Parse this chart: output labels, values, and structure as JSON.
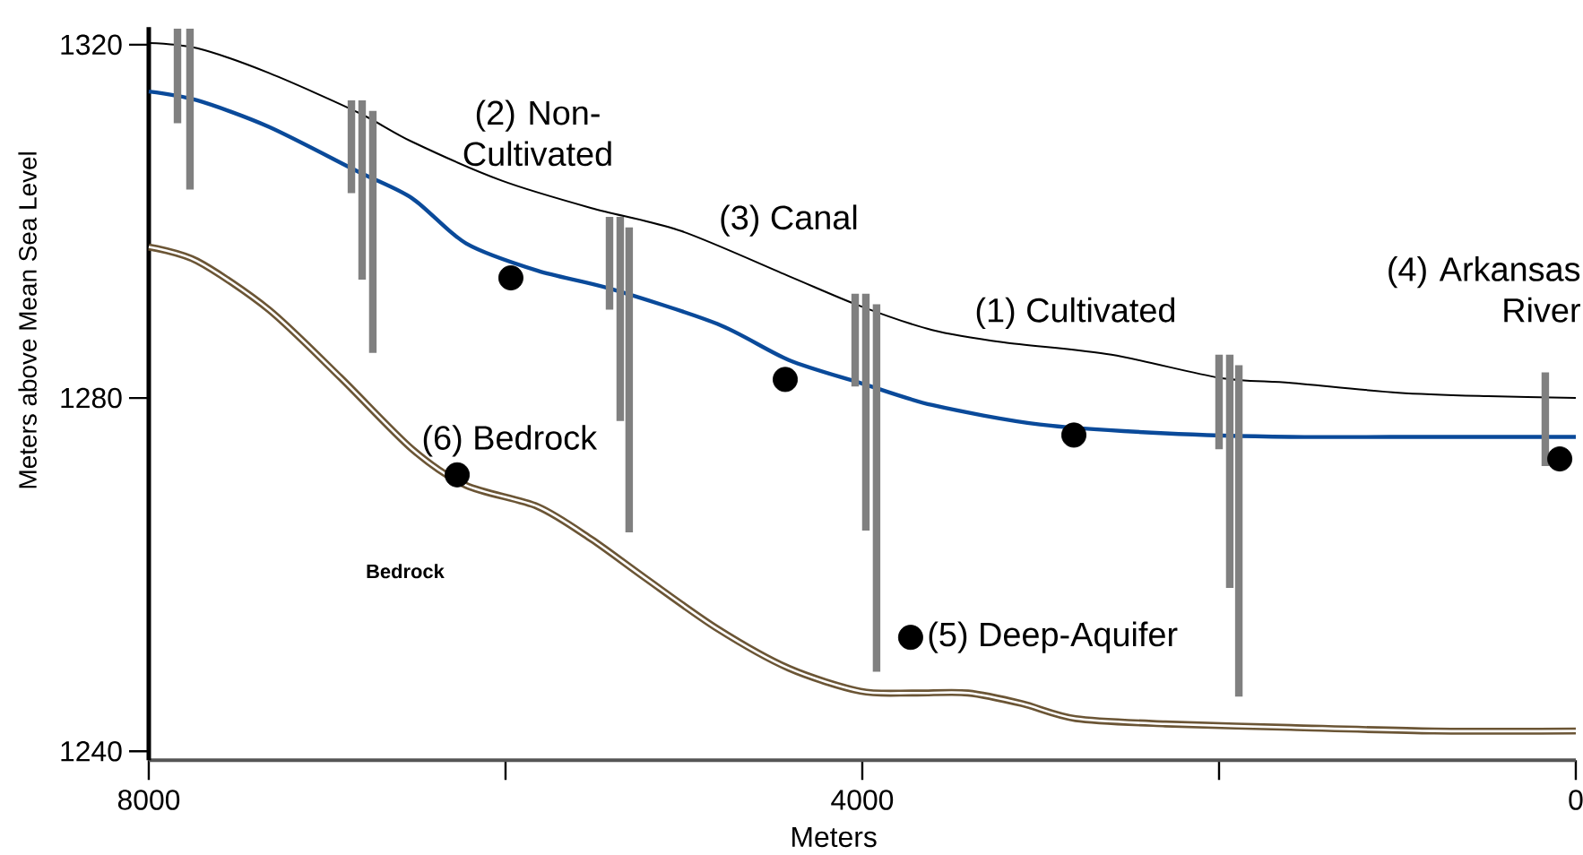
{
  "chart_data": {
    "type": "line",
    "xlabel": "Meters",
    "ylabel": "Meters above Mean Sea Level",
    "xlim": [
      8000,
      0
    ],
    "ylim": [
      1239,
      1322
    ],
    "xticks": [
      8000,
      {
        "value": 6000,
        "label": null
      },
      4000,
      {
        "value": 2000,
        "label": null
      },
      0
    ],
    "yticks": [
      1240,
      1280,
      1320
    ],
    "series": [
      {
        "color": "#000000",
        "x": [
          8000,
          7729,
          7327,
          6824,
          6523,
          6020,
          5518,
          5015,
          4412,
          4010,
          3608,
          3206,
          2603,
          2000,
          1598,
          995,
          492,
          0
        ],
        "values": [
          1320.2,
          1319.6,
          1316.8,
          1312.3,
          1309,
          1304.6,
          1301.5,
          1298.9,
          1293.8,
          1290.4,
          1287.7,
          1286.3,
          1284.9,
          1282.3,
          1281.7,
          1280.6,
          1280.2,
          1280
        ]
      },
      {
        "color": "#0a4a9a",
        "x": [
          8000,
          7729,
          7327,
          6824,
          6523,
          6221,
          5819,
          5417,
          4814,
          4412,
          4010,
          3608,
          3005,
          2302,
          1598,
          794,
          0
        ],
        "values": [
          1314.7,
          1313.7,
          1310.7,
          1305.6,
          1302.6,
          1297.5,
          1294.4,
          1292.4,
          1288.4,
          1284.3,
          1281.7,
          1279.2,
          1277,
          1276,
          1275.6,
          1275.6,
          1275.6
        ]
      },
      {
        "color": "#6b5535",
        "x": [
          8000,
          7729,
          7327,
          6925,
          6523,
          6221,
          5819,
          5518,
          5216,
          4814,
          4412,
          4010,
          3709,
          3407,
          3106,
          2804,
          2302,
          1598,
          794,
          0
        ],
        "values": [
          1297.1,
          1295.5,
          1290,
          1282.3,
          1274.2,
          1270.1,
          1267.7,
          1264,
          1259.6,
          1253.9,
          1249.4,
          1246.8,
          1246.6,
          1246.6,
          1245.4,
          1243.7,
          1243.1,
          1242.7,
          1242.3,
          1242.3
        ]
      },
      {
        "type": "bar",
        "color": "#808080",
        "x": [
          7839,
          7769,
          6864,
          6804,
          6744,
          5417,
          5357,
          5307,
          4040,
          3980,
          3920,
          2000,
          1940,
          1889,
          171
        ],
        "base": [
          1311.1,
          1303.6,
          1303.2,
          1293.4,
          1285.1,
          1290,
          1277.4,
          1264.8,
          1281.3,
          1265,
          1249,
          1274.2,
          1258.5,
          1246.2,
          1272.3
        ],
        "values": [
          10.7,
          18.2,
          10.5,
          20.3,
          27.4,
          10.5,
          23.1,
          34.5,
          10.5,
          26.8,
          41.6,
          10.7,
          26.4,
          37.5,
          10.6
        ]
      },
      {
        "type": "scatter",
        "color": "#000000",
        "marker": "circle",
        "x": [
          5970,
          4432,
          2814,
          90,
          6271,
          3729
        ],
        "values": [
          1293.6,
          1282.1,
          1275.8,
          1273.1,
          1271.3,
          1252.9
        ]
      }
    ],
    "annotations": [
      "(2) Non-Cultivated",
      {
        "text": "(3) Canal",
        "x": 4412,
        "y": 1293.8
      },
      "(1) Cultivated",
      {
        "text": "(4) Arkansas River",
        "x": 0,
        "y": 1280
      },
      {
        "text": "(6) Bedrock",
        "x": 6271,
        "y": 1271.3
      },
      {
        "text": "(5) Deep-Aquifer",
        "x": 3729,
        "y": 1252.9
      },
      "Bedrock"
    ]
  }
}
